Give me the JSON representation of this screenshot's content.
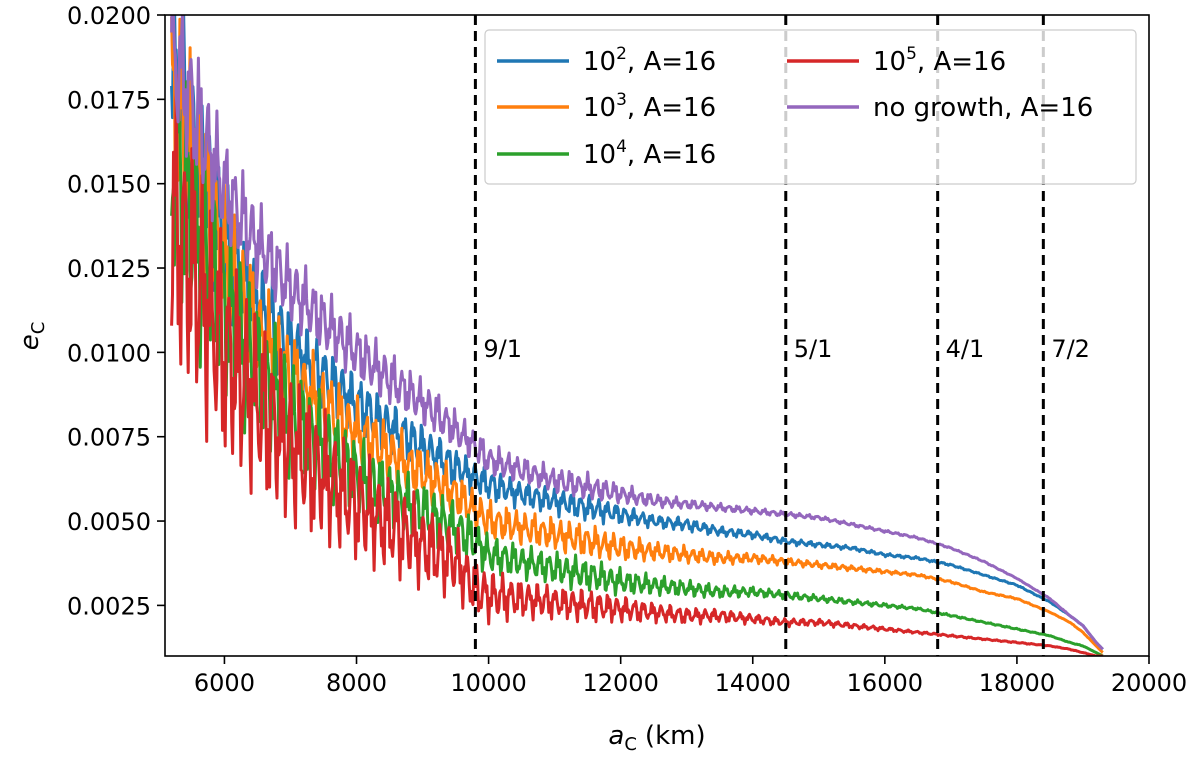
{
  "chart_data": {
    "type": "line",
    "title": "",
    "xlabel": "a_C (km)",
    "ylabel": "e_C",
    "xlabel_parts": {
      "symbol": "a",
      "sub": "C",
      "unit": "(km)"
    },
    "ylabel_parts": {
      "symbol": "e",
      "sub": "C"
    },
    "xlim": [
      5100,
      20000
    ],
    "ylim": [
      0.001,
      0.02
    ],
    "xticks": [
      6000,
      8000,
      10000,
      12000,
      14000,
      16000,
      18000,
      20000
    ],
    "xtick_labels": [
      "6000",
      "8000",
      "10000",
      "12000",
      "14000",
      "16000",
      "18000",
      "20000"
    ],
    "yticks": [
      0.0025,
      0.005,
      0.0075,
      0.01,
      0.0125,
      0.015,
      0.0175,
      0.02
    ],
    "ytick_labels": [
      "0.0025",
      "0.0050",
      "0.0075",
      "0.0100",
      "0.0125",
      "0.0150",
      "0.0175",
      "0.0200"
    ],
    "legend_position": "upper-right",
    "series": [
      {
        "name": "10^2, A=16",
        "legend_base": "10",
        "legend_exp": "2",
        "legend_rest": ", A=16",
        "color": "#1f77b4",
        "x": [
          5200,
          5600,
          6000,
          6500,
          7000,
          7500,
          8000,
          8500,
          9000,
          9500,
          9800,
          10000,
          10500,
          11000,
          11500,
          12000,
          12500,
          13000,
          13500,
          14000,
          14500,
          15000,
          15500,
          16000,
          16500,
          17000,
          17500,
          18000,
          18500,
          18800,
          19000,
          19200,
          19300
        ],
        "values": [
          0.0185,
          0.0158,
          0.0132,
          0.0114,
          0.0102,
          0.0093,
          0.0085,
          0.0078,
          0.0072,
          0.0066,
          0.0063,
          0.0061,
          0.0058,
          0.0056,
          0.0054,
          0.0052,
          0.005,
          0.0049,
          0.0047,
          0.0046,
          0.0044,
          0.0043,
          0.0042,
          0.004,
          0.0039,
          0.0037,
          0.0034,
          0.0031,
          0.0026,
          0.0022,
          0.0019,
          0.0014,
          0.0012
        ],
        "noise": [
          0.003,
          0.0025,
          0.002,
          0.0015,
          0.0012,
          0.001,
          0.0009,
          0.0008,
          0.0007,
          0.0006,
          0.0005,
          0.0005,
          0.0004,
          0.0004,
          0.0004,
          0.0003,
          0.0002,
          0.0002,
          0.00015,
          0.00012,
          0.0001,
          8e-05,
          6e-05,
          5e-05,
          4e-05,
          3e-05,
          2e-05,
          2e-05,
          1e-05,
          1e-05,
          1e-05,
          0,
          0
        ]
      },
      {
        "name": "10^3, A=16",
        "legend_base": "10",
        "legend_exp": "3",
        "legend_rest": ", A=16",
        "color": "#ff7f0e",
        "x": [
          5200,
          5600,
          6000,
          6500,
          7000,
          7500,
          8000,
          8500,
          9000,
          9500,
          9800,
          10000,
          10500,
          11000,
          11500,
          12000,
          12500,
          13000,
          13500,
          14000,
          14500,
          15000,
          15500,
          16000,
          16500,
          17000,
          17500,
          18000,
          18500,
          18800,
          19000,
          19200,
          19300
        ],
        "values": [
          0.0175,
          0.015,
          0.0125,
          0.0105,
          0.0092,
          0.0084,
          0.0076,
          0.007,
          0.0064,
          0.0058,
          0.0053,
          0.005,
          0.0048,
          0.0046,
          0.0044,
          0.0042,
          0.0041,
          0.004,
          0.0039,
          0.0039,
          0.0038,
          0.0037,
          0.0036,
          0.0035,
          0.0034,
          0.0032,
          0.0029,
          0.0027,
          0.0023,
          0.002,
          0.0017,
          0.0013,
          0.0011
        ],
        "noise": [
          0.0035,
          0.003,
          0.0024,
          0.0018,
          0.0014,
          0.0012,
          0.001,
          0.0009,
          0.0008,
          0.0007,
          0.0006,
          0.0006,
          0.0005,
          0.0005,
          0.0005,
          0.0004,
          0.0003,
          0.00025,
          0.0002,
          0.00015,
          0.00012,
          0.0001,
          8e-05,
          6e-05,
          4e-05,
          3e-05,
          2e-05,
          2e-05,
          1e-05,
          1e-05,
          1e-05,
          0,
          0
        ]
      },
      {
        "name": "10^4, A=16",
        "legend_base": "10",
        "legend_exp": "4",
        "legend_rest": ", A=16",
        "color": "#2ca02c",
        "x": [
          5200,
          5600,
          6000,
          6500,
          7000,
          7500,
          8000,
          8500,
          9000,
          9500,
          9800,
          10000,
          10500,
          11000,
          11500,
          12000,
          12500,
          13000,
          13500,
          14000,
          14500,
          15000,
          15500,
          16000,
          16500,
          17000,
          17500,
          18000,
          18500,
          18800,
          19000,
          19200,
          19300
        ],
        "values": [
          0.016,
          0.0135,
          0.0115,
          0.0096,
          0.0082,
          0.0072,
          0.0064,
          0.0058,
          0.0053,
          0.0048,
          0.0044,
          0.004,
          0.0038,
          0.0036,
          0.0034,
          0.0032,
          0.0031,
          0.003,
          0.0029,
          0.0029,
          0.0028,
          0.0027,
          0.0026,
          0.0025,
          0.0024,
          0.0022,
          0.002,
          0.0018,
          0.0016,
          0.0014,
          0.0013,
          0.0011,
          0.001
        ],
        "noise": [
          0.004,
          0.0034,
          0.0028,
          0.0022,
          0.0018,
          0.0015,
          0.0012,
          0.001,
          0.0009,
          0.0008,
          0.0007,
          0.0006,
          0.0005,
          0.0005,
          0.0005,
          0.0004,
          0.0003,
          0.00025,
          0.0002,
          0.00015,
          0.00012,
          0.0001,
          8e-05,
          6e-05,
          4e-05,
          3e-05,
          2e-05,
          2e-05,
          1e-05,
          1e-05,
          1e-05,
          0,
          0
        ]
      },
      {
        "name": "10^5, A=16",
        "legend_base": "10",
        "legend_exp": "5",
        "legend_rest": ", A=16",
        "color": "#d62728",
        "x": [
          5200,
          5600,
          6000,
          6500,
          7000,
          7500,
          8000,
          8500,
          9000,
          9500,
          9800,
          10000,
          10500,
          11000,
          11500,
          12000,
          12500,
          13000,
          13500,
          14000,
          14500,
          15000,
          15500,
          16000,
          16500,
          17000,
          17500,
          18000,
          18500,
          18800,
          19000,
          19200,
          19300
        ],
        "values": [
          0.014,
          0.012,
          0.01,
          0.0085,
          0.0072,
          0.0063,
          0.0055,
          0.0049,
          0.0043,
          0.0038,
          0.003,
          0.0028,
          0.0027,
          0.0026,
          0.0025,
          0.0024,
          0.0023,
          0.0022,
          0.0022,
          0.0021,
          0.002,
          0.002,
          0.0019,
          0.0018,
          0.0017,
          0.0016,
          0.0015,
          0.0014,
          0.0013,
          0.0012,
          0.0011,
          0.001,
          0.001
        ],
        "noise": [
          0.0045,
          0.004,
          0.0034,
          0.0028,
          0.0024,
          0.002,
          0.0017,
          0.0015,
          0.0013,
          0.0011,
          0.0009,
          0.0008,
          0.0006,
          0.0005,
          0.0005,
          0.0004,
          0.0003,
          0.00025,
          0.0002,
          0.00015,
          0.00012,
          0.0001,
          8e-05,
          6e-05,
          4e-05,
          3e-05,
          2e-05,
          2e-05,
          1e-05,
          1e-05,
          1e-05,
          0,
          0
        ]
      },
      {
        "name": "no growth, A=16",
        "legend_base": "no growth, A=16",
        "legend_exp": "",
        "legend_rest": "",
        "color": "#9467bd",
        "x": [
          5200,
          5600,
          6000,
          6500,
          7000,
          7500,
          8000,
          8500,
          9000,
          9500,
          9800,
          10000,
          10500,
          11000,
          11500,
          12000,
          12500,
          13000,
          13500,
          14000,
          14500,
          15000,
          15500,
          16000,
          16500,
          17000,
          17500,
          18000,
          18500,
          18800,
          19000,
          19200,
          19300
        ],
        "values": [
          0.019,
          0.0168,
          0.0148,
          0.0132,
          0.0119,
          0.0109,
          0.01,
          0.0092,
          0.0085,
          0.0077,
          0.0072,
          0.0068,
          0.0065,
          0.0062,
          0.006,
          0.0058,
          0.0056,
          0.0055,
          0.0054,
          0.0053,
          0.0052,
          0.0051,
          0.0049,
          0.0047,
          0.0045,
          0.0042,
          0.0038,
          0.0033,
          0.0027,
          0.0022,
          0.0019,
          0.0014,
          0.0012
        ],
        "noise": [
          0.0025,
          0.002,
          0.0016,
          0.0013,
          0.0011,
          0.001,
          0.0009,
          0.0008,
          0.0007,
          0.0006,
          0.0005,
          0.0005,
          0.0004,
          0.0004,
          0.0004,
          0.0003,
          0.0002,
          0.00015,
          0.00012,
          0.0001,
          8e-05,
          6e-05,
          5e-05,
          4e-05,
          3e-05,
          2e-05,
          2e-05,
          1e-05,
          1e-05,
          1e-05,
          0,
          0,
          0
        ]
      }
    ],
    "resonances": [
      {
        "label": "9/1",
        "x": 9800
      },
      {
        "label": "5/1",
        "x": 14500
      },
      {
        "label": "4/1",
        "x": 16800
      },
      {
        "label": "7/2",
        "x": 18400
      }
    ],
    "resonance_label_y": 0.0101
  }
}
